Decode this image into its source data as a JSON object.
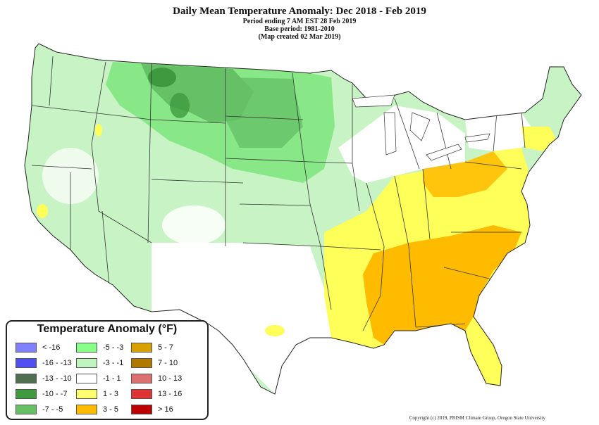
{
  "title": "Daily Mean Temperature Anomaly: Dec 2018 - Feb 2019",
  "subtitle_lines": [
    "Period ending 7 AM EST 28 Feb 2019",
    "Base period: 1981-2010",
    "(Map created 02 Mar 2019)"
  ],
  "legend": {
    "title": "Temperature Anomaly (°F)",
    "items": [
      {
        "label": "< -16",
        "color": "#8080ff"
      },
      {
        "label": "-16 - -13",
        "color": "#5050f0"
      },
      {
        "label": "-13 - -10",
        "color": "#4f6f4f"
      },
      {
        "label": "-10 - -7",
        "color": "#3f9a3f"
      },
      {
        "label": "-7 - -5",
        "color": "#66c066"
      },
      {
        "label": "-5 - -3",
        "color": "#88ff88"
      },
      {
        "label": "-3 - -1",
        "color": "#c0f5c0"
      },
      {
        "label": "-1 - 1",
        "color": "#ffffff"
      },
      {
        "label": "1 - 3",
        "color": "#ffff70"
      },
      {
        "label": "3 - 5",
        "color": "#ffbb00"
      },
      {
        "label": "5 - 7",
        "color": "#d8a000"
      },
      {
        "label": "7 - 10",
        "color": "#b07800"
      },
      {
        "label": "10 - 13",
        "color": "#dd7070"
      },
      {
        "label": "13 - 16",
        "color": "#dd3333"
      },
      {
        "label": "> 16",
        "color": "#bb0000"
      }
    ]
  },
  "copyright": "Copyright (c) 2019, PRISM Climate Group, Oregon State University"
}
